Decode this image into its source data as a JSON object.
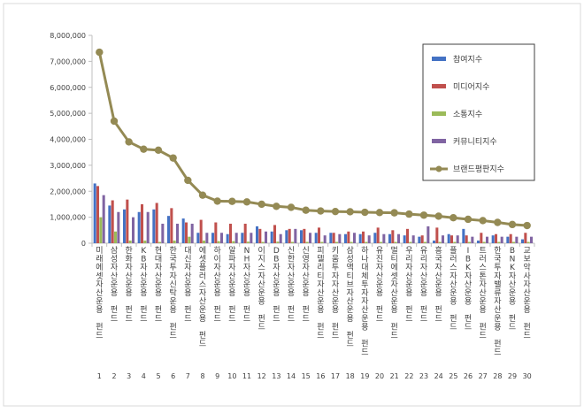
{
  "chart_data": {
    "type": "bar",
    "title": "",
    "xlabel": "",
    "ylabel": "",
    "ylim": [
      0,
      8000000
    ],
    "yticks": [
      "0",
      "1,000,000",
      "2,000,000",
      "3,000,000",
      "4,000,000",
      "5,000,000",
      "6,000,000",
      "7,000,000",
      "8,000,000"
    ],
    "grid": false,
    "legend_position": "right",
    "categories": [
      "1",
      "2",
      "3",
      "4",
      "5",
      "6",
      "7",
      "8",
      "9",
      "10",
      "11",
      "12",
      "13",
      "14",
      "15",
      "16",
      "17",
      "18",
      "19",
      "20",
      "21",
      "22",
      "23",
      "24",
      "25",
      "26",
      "27",
      "28",
      "29",
      "30"
    ],
    "category_names": [
      "미래에셋자산운용 펀드",
      "삼성자산운용 펀드",
      "한화자산운용 펀드",
      "KB자산운용 펀드",
      "현대자산운용 펀드",
      "한국투자신탁운용 펀드",
      "대신자산운용 펀드",
      "에셋플러스자산운용 펀드",
      "하이자산운용 펀드",
      "알파자산운용 펀드",
      "NH자산운용 펀드",
      "이지스자산운용 펀드",
      "DB자산운용 펀드",
      "신한자산운용 펀드",
      "신영자산운용 펀드",
      "피델리티자산운용 펀드",
      "키움투자자산운용 펀드",
      "삼성액티브자산운용 펀드",
      "하나대체투자자산운용 펀드",
      "유진자산운용 펀드",
      "멀티에셋자산운용 펀드",
      "우리자산운용 펀드",
      "유리자산운용 펀드",
      "흥국자산운용 펀드",
      "플러스자산운용 펀드",
      "IBK자산운용 펀드",
      "트러스톤자산운용 펀드",
      "한국투자밸류자산운용 펀드",
      "BNK자산운용 펀드",
      "교보악사자산운용 펀드"
    ],
    "series": [
      {
        "name": "참여지수",
        "type": "bar",
        "color": "#4472c4",
        "values": [
          2300000,
          1450000,
          1300000,
          1200000,
          1300000,
          1050000,
          950000,
          400000,
          400000,
          350000,
          400000,
          650000,
          450000,
          500000,
          500000,
          400000,
          400000,
          350000,
          350000,
          400000,
          350000,
          300000,
          250000,
          100000,
          350000,
          550000,
          100000,
          300000,
          250000,
          150000
        ]
      },
      {
        "name": "미디어지수",
        "type": "bar",
        "color": "#c0504d",
        "values": [
          2200000,
          1650000,
          1680000,
          1500000,
          1550000,
          1350000,
          800000,
          900000,
          800000,
          750000,
          750000,
          550000,
          700000,
          550000,
          550000,
          600000,
          400000,
          450000,
          450000,
          600000,
          500000,
          550000,
          300000,
          600000,
          300000,
          300000,
          400000,
          350000,
          350000,
          400000
        ]
      },
      {
        "name": "소통지수",
        "type": "bar",
        "color": "#9bbb59",
        "values": [
          1000000,
          450000,
          100000,
          100000,
          50000,
          100000,
          250000,
          100000,
          80000,
          80000,
          60000,
          50000,
          60000,
          50000,
          50000,
          50000,
          50000,
          50000,
          50000,
          50000,
          50000,
          50000,
          50000,
          50000,
          50000,
          50000,
          50000,
          50000,
          50000,
          50000
        ]
      },
      {
        "name": "커뮤니티지수",
        "type": "bar",
        "color": "#8064a2",
        "values": [
          1850000,
          1200000,
          1000000,
          1200000,
          750000,
          750000,
          750000,
          400000,
          400000,
          400000,
          400000,
          450000,
          350000,
          550000,
          400000,
          300000,
          350000,
          400000,
          300000,
          350000,
          350000,
          300000,
          650000,
          300000,
          300000,
          250000,
          250000,
          250000,
          250000,
          250000
        ]
      },
      {
        "name": "브랜드평판지수",
        "type": "line",
        "color": "#948a54",
        "values": [
          7350000,
          4700000,
          3900000,
          3620000,
          3580000,
          3280000,
          2420000,
          1850000,
          1620000,
          1610000,
          1590000,
          1500000,
          1420000,
          1380000,
          1270000,
          1240000,
          1220000,
          1210000,
          1190000,
          1180000,
          1170000,
          1120000,
          1080000,
          1040000,
          980000,
          920000,
          870000,
          800000,
          720000,
          680000
        ]
      }
    ]
  }
}
